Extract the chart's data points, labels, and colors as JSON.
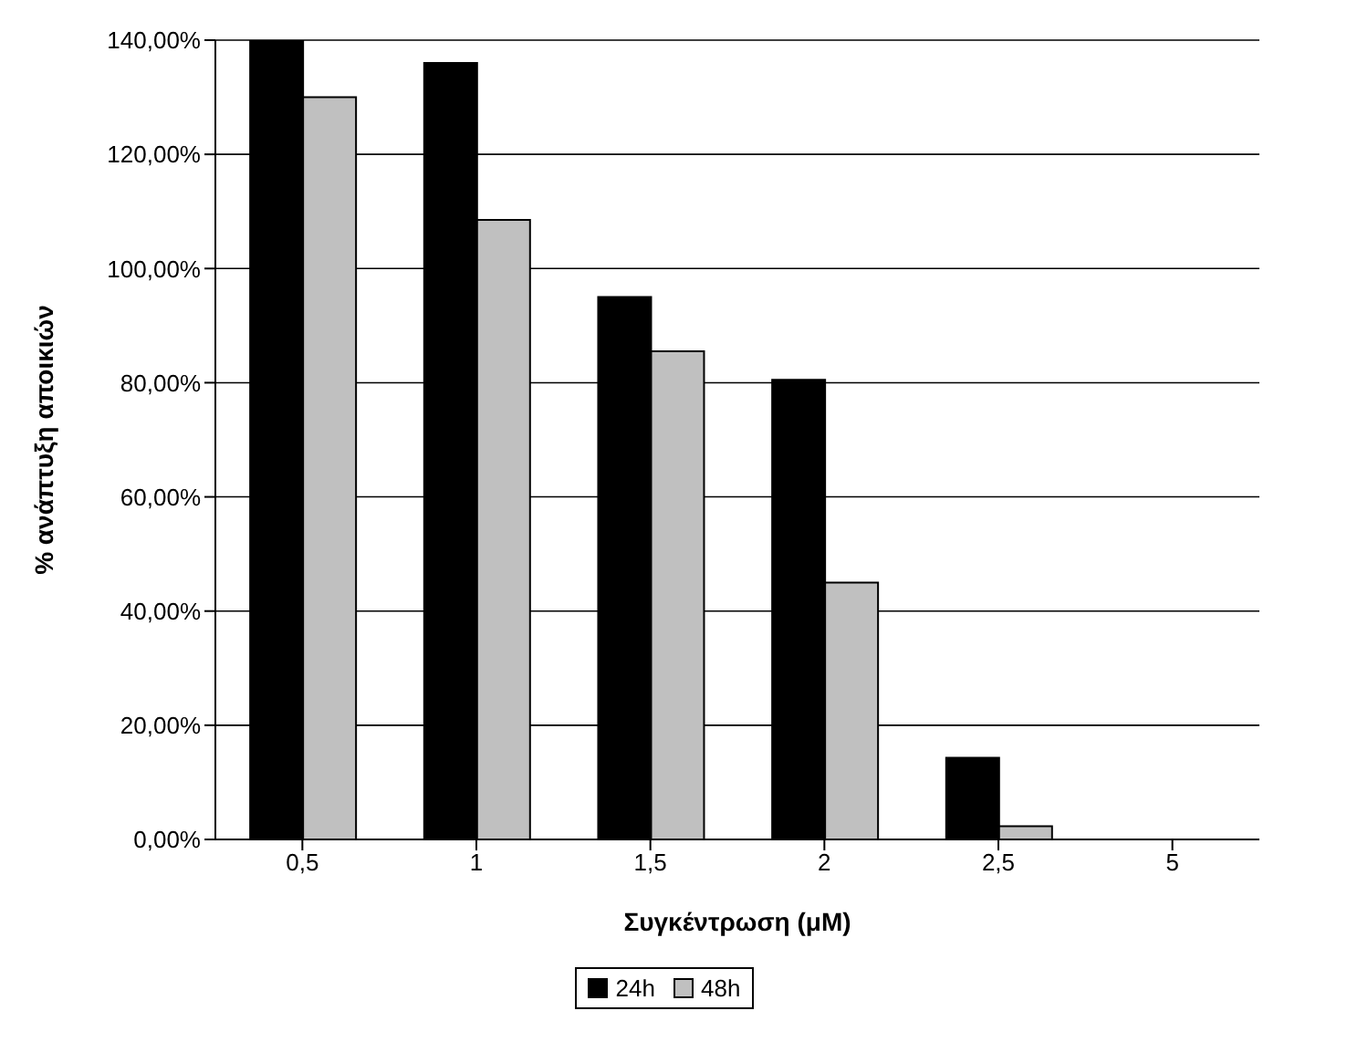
{
  "chart_data": {
    "type": "bar",
    "xlabel": "Συγκέντρωση (μM)",
    "ylabel": "% ανάπτυξη αποικιών",
    "categories": [
      "0,5",
      "1",
      "1,5",
      "2",
      "2,5",
      "5"
    ],
    "series": [
      {
        "name": "24h",
        "color": "#000000",
        "values": [
          140,
          136,
          95,
          80.5,
          14.3,
          0
        ]
      },
      {
        "name": "48h",
        "color": "#c0c0c0",
        "values": [
          130,
          108.5,
          85.5,
          45,
          2.3,
          0
        ]
      }
    ],
    "ylim": [
      0,
      140
    ],
    "yticks": [
      {
        "value": 0,
        "label": "0,00%"
      },
      {
        "value": 20,
        "label": "20,00%"
      },
      {
        "value": 40,
        "label": "40,00%"
      },
      {
        "value": 60,
        "label": "60,00%"
      },
      {
        "value": 80,
        "label": "80,00%"
      },
      {
        "value": 100,
        "label": "100,00%"
      },
      {
        "value": 120,
        "label": "120,00%"
      },
      {
        "value": 140,
        "label": "140,00%"
      }
    ],
    "grid": "y",
    "legend": "bottom"
  }
}
